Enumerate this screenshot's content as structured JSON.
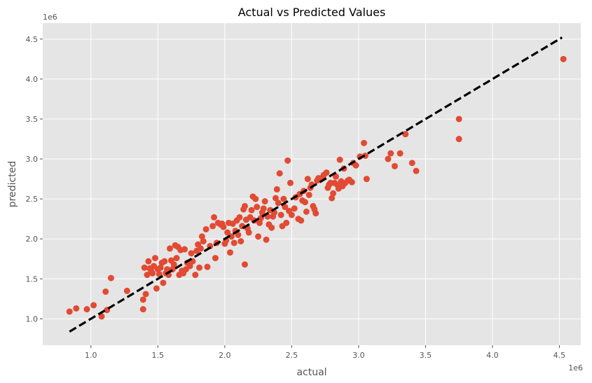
{
  "chart_data": {
    "type": "scatter",
    "title": "Actual vs Predicted Values",
    "xlabel": "actual",
    "ylabel": "predicted",
    "x_offset_label": "1e6",
    "y_offset_label": "1e6",
    "xlim": [
      0.64,
      4.66
    ],
    "ylim": [
      0.67,
      4.7
    ],
    "x_ticks": [
      1.0,
      1.5,
      2.0,
      2.5,
      3.0,
      3.5,
      4.0,
      4.5
    ],
    "y_ticks": [
      1.0,
      1.5,
      2.0,
      2.5,
      3.0,
      3.5,
      4.0,
      4.5
    ],
    "x_tick_labels": [
      "1.0",
      "1.5",
      "2.0",
      "2.5",
      "3.0",
      "3.5",
      "4.0",
      "4.5"
    ],
    "y_tick_labels": [
      "1.0",
      "1.5",
      "2.0",
      "2.5",
      "3.0",
      "3.5",
      "4.0",
      "4.5"
    ],
    "grid": true,
    "colors": {
      "points": "#E24A33",
      "reference_line": "#000000",
      "background": "#E5E5E5",
      "grid": "#FFFFFF"
    },
    "reference_line": {
      "x": [
        0.84,
        4.52
      ],
      "y": [
        0.84,
        4.52
      ],
      "style": "dashed"
    },
    "points": [
      [
        0.84,
        1.09
      ],
      [
        0.89,
        1.13
      ],
      [
        0.97,
        1.12
      ],
      [
        1.02,
        1.17
      ],
      [
        1.08,
        1.03
      ],
      [
        1.11,
        1.34
      ],
      [
        1.12,
        1.11
      ],
      [
        1.15,
        1.51
      ],
      [
        1.27,
        1.35
      ],
      [
        1.39,
        1.12
      ],
      [
        1.39,
        1.24
      ],
      [
        1.4,
        1.64
      ],
      [
        1.41,
        1.31
      ],
      [
        1.42,
        1.55
      ],
      [
        1.43,
        1.72
      ],
      [
        1.44,
        1.63
      ],
      [
        1.45,
        1.6
      ],
      [
        1.46,
        1.57
      ],
      [
        1.47,
        1.66
      ],
      [
        1.48,
        1.76
      ],
      [
        1.49,
        1.38
      ],
      [
        1.5,
        1.62
      ],
      [
        1.51,
        1.56
      ],
      [
        1.52,
        1.64
      ],
      [
        1.53,
        1.7
      ],
      [
        1.54,
        1.45
      ],
      [
        1.55,
        1.72
      ],
      [
        1.56,
        1.57
      ],
      [
        1.57,
        1.62
      ],
      [
        1.58,
        1.55
      ],
      [
        1.59,
        1.88
      ],
      [
        1.6,
        1.73
      ],
      [
        1.61,
        1.62
      ],
      [
        1.62,
        1.68
      ],
      [
        1.63,
        1.92
      ],
      [
        1.64,
        1.76
      ],
      [
        1.65,
        1.9
      ],
      [
        1.66,
        1.55
      ],
      [
        1.67,
        1.86
      ],
      [
        1.68,
        1.6
      ],
      [
        1.69,
        1.57
      ],
      [
        1.7,
        1.87
      ],
      [
        1.71,
        1.62
      ],
      [
        1.72,
        1.7
      ],
      [
        1.74,
        1.66
      ],
      [
        1.75,
        1.82
      ],
      [
        1.76,
        1.72
      ],
      [
        1.78,
        1.55
      ],
      [
        1.79,
        1.85
      ],
      [
        1.8,
        1.93
      ],
      [
        1.81,
        1.64
      ],
      [
        1.82,
        1.88
      ],
      [
        1.83,
        2.03
      ],
      [
        1.84,
        1.97
      ],
      [
        1.86,
        2.12
      ],
      [
        1.87,
        1.65
      ],
      [
        1.89,
        1.91
      ],
      [
        1.91,
        2.16
      ],
      [
        1.92,
        2.27
      ],
      [
        1.93,
        1.76
      ],
      [
        1.94,
        1.95
      ],
      [
        1.95,
        2.2
      ],
      [
        1.97,
        2.18
      ],
      [
        1.98,
        2.19
      ],
      [
        1.99,
        2.15
      ],
      [
        2.0,
        1.94
      ],
      [
        2.01,
        1.98
      ],
      [
        2.02,
        2.08
      ],
      [
        2.03,
        2.2
      ],
      [
        2.04,
        1.83
      ],
      [
        2.05,
        2.03
      ],
      [
        2.06,
        2.19
      ],
      [
        2.07,
        1.95
      ],
      [
        2.08,
        2.1
      ],
      [
        2.09,
        2.23
      ],
      [
        2.1,
        2.05
      ],
      [
        2.11,
        2.27
      ],
      [
        2.12,
        1.97
      ],
      [
        2.13,
        2.16
      ],
      [
        2.14,
        2.37
      ],
      [
        2.15,
        1.68
      ],
      [
        2.15,
        2.41
      ],
      [
        2.16,
        2.24
      ],
      [
        2.17,
        2.13
      ],
      [
        2.18,
        2.08
      ],
      [
        2.19,
        2.27
      ],
      [
        2.2,
        2.36
      ],
      [
        2.21,
        2.53
      ],
      [
        2.22,
        2.23
      ],
      [
        2.23,
        2.5
      ],
      [
        2.24,
        2.4
      ],
      [
        2.25,
        2.03
      ],
      [
        2.26,
        2.2
      ],
      [
        2.27,
        2.26
      ],
      [
        2.28,
        2.33
      ],
      [
        2.29,
        2.38
      ],
      [
        2.3,
        2.47
      ],
      [
        2.31,
        1.99
      ],
      [
        2.32,
        2.28
      ],
      [
        2.33,
        2.18
      ],
      [
        2.34,
        2.36
      ],
      [
        2.35,
        2.14
      ],
      [
        2.36,
        2.28
      ],
      [
        2.37,
        2.33
      ],
      [
        2.38,
        2.51
      ],
      [
        2.39,
        2.62
      ],
      [
        2.4,
        2.45
      ],
      [
        2.41,
        2.82
      ],
      [
        2.42,
        2.3
      ],
      [
        2.43,
        2.16
      ],
      [
        2.44,
        2.5
      ],
      [
        2.45,
        2.4
      ],
      [
        2.46,
        2.2
      ],
      [
        2.47,
        2.98
      ],
      [
        2.48,
        2.35
      ],
      [
        2.49,
        2.7
      ],
      [
        2.5,
        2.3
      ],
      [
        2.52,
        2.38
      ],
      [
        2.53,
        2.52
      ],
      [
        2.55,
        2.25
      ],
      [
        2.56,
        2.56
      ],
      [
        2.57,
        2.23
      ],
      [
        2.58,
        2.48
      ],
      [
        2.59,
        2.6
      ],
      [
        2.6,
        2.46
      ],
      [
        2.61,
        2.34
      ],
      [
        2.62,
        2.75
      ],
      [
        2.63,
        2.55
      ],
      [
        2.64,
        2.64
      ],
      [
        2.65,
        2.68
      ],
      [
        2.66,
        2.41
      ],
      [
        2.67,
        2.37
      ],
      [
        2.68,
        2.32
      ],
      [
        2.69,
        2.73
      ],
      [
        2.7,
        2.76
      ],
      [
        2.72,
        2.76
      ],
      [
        2.74,
        2.8
      ],
      [
        2.76,
        2.83
      ],
      [
        2.77,
        2.64
      ],
      [
        2.78,
        2.68
      ],
      [
        2.79,
        2.7
      ],
      [
        2.8,
        2.51
      ],
      [
        2.81,
        2.57
      ],
      [
        2.82,
        2.7
      ],
      [
        2.83,
        2.78
      ],
      [
        2.84,
        2.68
      ],
      [
        2.85,
        2.63
      ],
      [
        2.86,
        2.99
      ],
      [
        2.87,
        2.72
      ],
      [
        2.88,
        2.66
      ],
      [
        2.89,
        2.88
      ],
      [
        2.9,
        2.7
      ],
      [
        2.92,
        2.73
      ],
      [
        2.93,
        2.74
      ],
      [
        2.95,
        2.71
      ],
      [
        2.96,
        2.95
      ],
      [
        2.98,
        2.92
      ],
      [
        3.01,
        3.03
      ],
      [
        3.04,
        3.2
      ],
      [
        3.05,
        3.04
      ],
      [
        3.06,
        2.75
      ],
      [
        3.22,
        3.0
      ],
      [
        3.24,
        3.07
      ],
      [
        3.27,
        2.91
      ],
      [
        3.31,
        3.07
      ],
      [
        3.35,
        3.31
      ],
      [
        3.4,
        2.95
      ],
      [
        3.43,
        2.85
      ],
      [
        3.75,
        3.5
      ],
      [
        3.75,
        3.25
      ],
      [
        4.53,
        4.25
      ]
    ]
  }
}
